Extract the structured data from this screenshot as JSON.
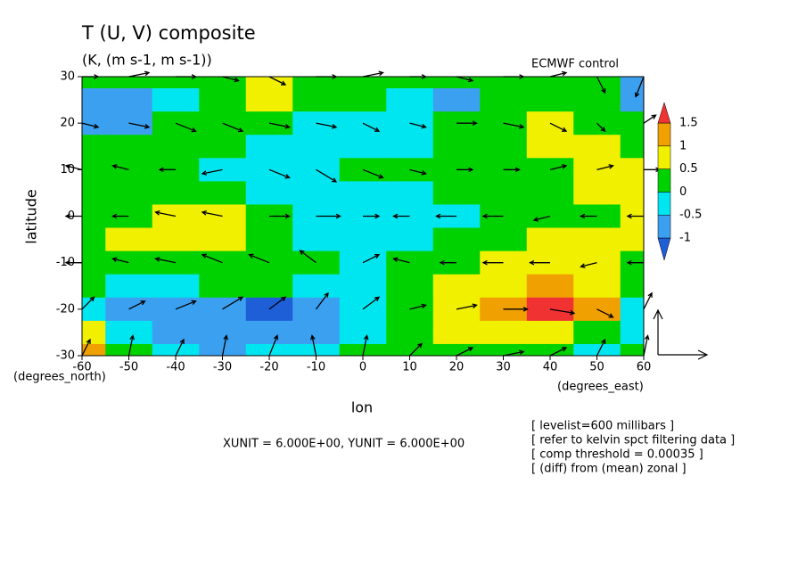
{
  "chart_data": {
    "type": "vector-contour",
    "title": "T (U, V) composite",
    "subtitle": "(K, (m s-1, m s-1))",
    "source_label": "ECMWF  control",
    "ylabel": "latitude",
    "xlabel": "lon",
    "ylabel_units": "(degrees_north)",
    "xlabel_units": "(degrees_east)",
    "unit_note": "XUNIT = 6.000E+00, YUNIT = 6.000E+00",
    "notes": [
      "[ levelist=600 millibars ]",
      "[ refer to kelvin spct filtering data ]",
      "[ comp threshold = 0.00035 ]",
      "[ (diff) from (mean) zonal ]"
    ],
    "xlim": [
      -60,
      60
    ],
    "ylim": [
      -30,
      30
    ],
    "xticks": [
      -60,
      -50,
      -40,
      -30,
      -20,
      -10,
      0,
      10,
      20,
      30,
      40,
      50,
      60
    ],
    "yticks": [
      -30,
      -20,
      -10,
      0,
      10,
      20,
      30
    ],
    "levels": [
      -1,
      -0.5,
      0,
      0.5,
      1,
      1.5
    ],
    "colors": [
      "#1e5fd8",
      "#3ca0f0",
      "#00e6f0",
      "#00d200",
      "#f0f000",
      "#f0a000",
      "#f03232"
    ],
    "field": {
      "lon": [
        -60,
        -50,
        -40,
        -30,
        -20,
        -10,
        0,
        10,
        20,
        30,
        40,
        50,
        60
      ],
      "lat": [
        30,
        25,
        20,
        15,
        10,
        5,
        0,
        -5,
        -10,
        -15,
        -20,
        -25,
        -30
      ],
      "values": [
        [
          0.2,
          0.2,
          0.2,
          0.3,
          0.6,
          0.3,
          0.3,
          0.2,
          0.2,
          0.3,
          0.2,
          0.2,
          -0.7
        ],
        [
          -0.7,
          -0.7,
          -0.3,
          0.2,
          0.7,
          0.2,
          0.2,
          -0.3,
          -0.7,
          0.2,
          0.2,
          0.2,
          -0.7
        ],
        [
          -0.7,
          -0.7,
          0.2,
          0.2,
          0.2,
          -0.3,
          -0.3,
          -0.3,
          0.2,
          0.2,
          0.7,
          0.2,
          0.2
        ],
        [
          0.2,
          0.2,
          0.2,
          0.2,
          -0.3,
          -0.3,
          -0.3,
          -0.3,
          0.2,
          0.2,
          0.7,
          0.7,
          0.2
        ],
        [
          0.2,
          0.2,
          0.2,
          -0.3,
          -0.3,
          -0.3,
          0.2,
          0.2,
          0.2,
          0.2,
          0.2,
          0.7,
          0.7
        ],
        [
          0.2,
          0.2,
          0.2,
          0.2,
          -0.3,
          -0.3,
          -0.3,
          -0.3,
          0.2,
          0.2,
          0.2,
          0.7,
          0.7
        ],
        [
          0.2,
          0.2,
          0.7,
          0.7,
          0.2,
          -0.3,
          -0.3,
          -0.3,
          -0.3,
          0.2,
          0.2,
          0.2,
          0.7
        ],
        [
          0.2,
          0.7,
          0.7,
          0.7,
          0.2,
          -0.3,
          -0.3,
          -0.3,
          0.2,
          0.2,
          0.7,
          0.7,
          0.7
        ],
        [
          0.2,
          0.2,
          0.2,
          0.2,
          0.2,
          0.2,
          -0.3,
          0.2,
          0.2,
          0.7,
          0.7,
          0.7,
          0.2
        ],
        [
          0.2,
          -0.3,
          -0.3,
          0.2,
          0.2,
          -0.3,
          -0.3,
          0.2,
          0.7,
          0.7,
          1.2,
          0.7,
          0.2
        ],
        [
          -0.3,
          -0.7,
          -0.7,
          -0.7,
          -1.2,
          -0.7,
          -0.3,
          0.2,
          0.7,
          1.2,
          1.7,
          1.2,
          -0.3
        ],
        [
          0.7,
          -0.3,
          -0.7,
          -0.7,
          -0.7,
          -0.7,
          -0.3,
          0.2,
          0.7,
          0.7,
          0.7,
          0.2,
          -0.3
        ],
        [
          1.2,
          0.2,
          -0.3,
          -0.7,
          -0.3,
          -0.3,
          0.2,
          0.2,
          0.2,
          0.2,
          0.2,
          -0.3,
          0.2
        ]
      ]
    },
    "wind": {
      "lon": [
        -60,
        -50,
        -40,
        -30,
        -20,
        -10,
        0,
        10,
        20,
        30,
        40,
        50,
        60
      ],
      "lat": [
        30,
        20,
        10,
        0,
        -10,
        -20,
        -30
      ],
      "u": [
        [
          2,
          2.5,
          2.5,
          2,
          2,
          2.5,
          2.5,
          2,
          2,
          2.5,
          2,
          1,
          -1
        ],
        [
          2,
          2.5,
          2.5,
          2.5,
          2.5,
          2.5,
          2,
          2,
          2.5,
          2.5,
          2,
          1,
          1.5
        ],
        [
          -2,
          -2,
          -2,
          -2.5,
          2.5,
          2.5,
          2.5,
          2,
          2,
          2,
          2,
          2,
          2
        ],
        [
          -2,
          -2,
          -2.5,
          -2.5,
          2.5,
          3,
          2,
          -2,
          -2.5,
          -2.5,
          -2,
          -2,
          -2
        ],
        [
          -2,
          -2,
          -2.5,
          -2.5,
          -2.5,
          -2,
          2,
          -2,
          -2,
          -2.5,
          -2.5,
          -2,
          -2
        ],
        [
          1.5,
          2,
          2.5,
          2.5,
          2,
          1.5,
          2,
          2,
          2.5,
          3,
          3,
          2,
          1
        ],
        [
          1,
          0.5,
          1,
          0.5,
          1,
          -0.5,
          0.5,
          1.5,
          2,
          2.5,
          2,
          1,
          0.5
        ]
      ],
      "v": [
        [
          0,
          0.5,
          0,
          -0.5,
          -1,
          0,
          0.5,
          0,
          -0.5,
          0,
          0.5,
          -2,
          -2.5
        ],
        [
          -0.5,
          -0.5,
          -1,
          -1,
          -0.5,
          -0.5,
          -1,
          -0.5,
          0,
          -0.5,
          -1,
          -1,
          1
        ],
        [
          0.5,
          0.5,
          0,
          -0.5,
          -1,
          -1.5,
          -1,
          -0.5,
          0,
          0,
          0.5,
          0.5,
          0
        ],
        [
          0,
          0,
          0.5,
          0.5,
          0,
          0,
          0,
          0,
          0,
          0,
          -0.5,
          0,
          0
        ],
        [
          0,
          0.5,
          0.5,
          1,
          1,
          1.5,
          1,
          0.5,
          0,
          0,
          0,
          -0.5,
          0
        ],
        [
          1.5,
          1,
          1,
          1.5,
          1.5,
          2,
          1.5,
          0.5,
          0.5,
          0,
          -0.5,
          -1,
          2
        ],
        [
          2,
          2.5,
          2,
          2.5,
          2.5,
          2.5,
          2.5,
          1.5,
          1,
          0.5,
          1,
          2,
          2.5
        ]
      ]
    }
  }
}
